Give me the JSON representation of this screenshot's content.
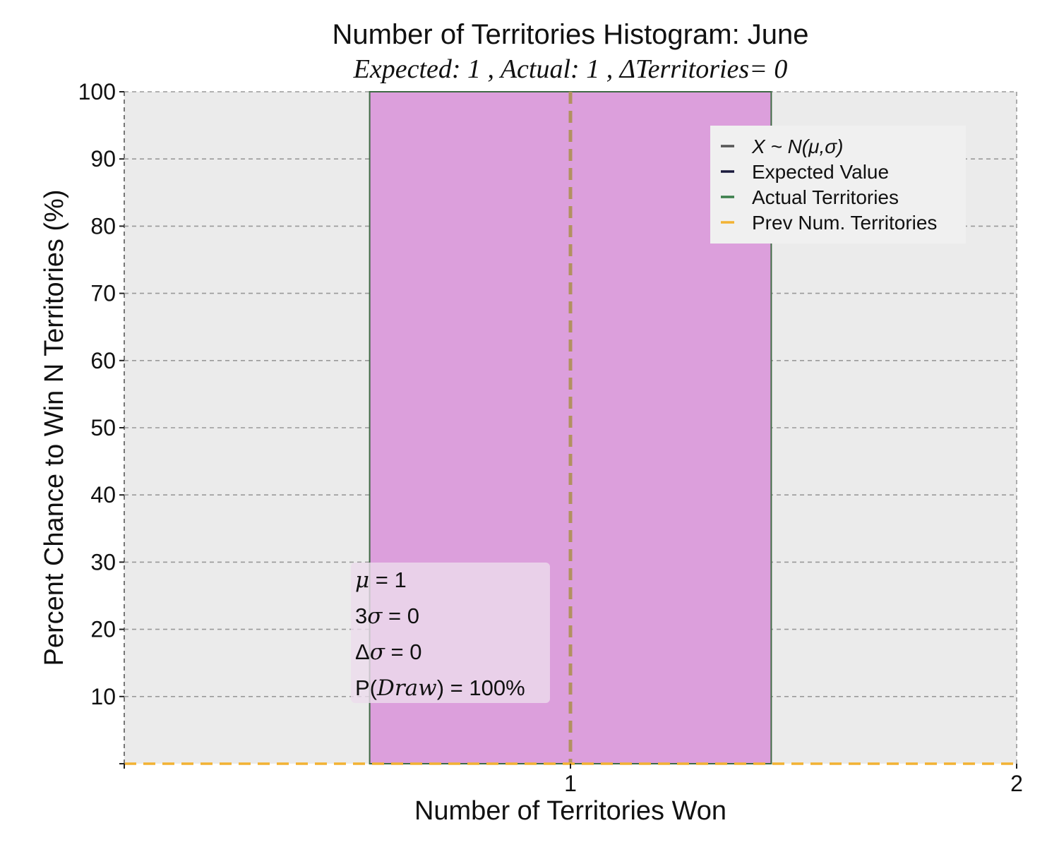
{
  "chart_data": {
    "type": "bar",
    "title": "Number of Territories Histogram: June",
    "subtitle": "Expected: 1 , Actual: 1 , ΔTerritories= 0",
    "xlabel": "Number of Territories Won",
    "ylabel": "Percent Chance to Win N Territories (%)",
    "xlim": [
      0,
      2
    ],
    "ylim": [
      0,
      100
    ],
    "xticks": [
      1,
      2
    ],
    "xtick_labels": [
      "1",
      "2"
    ],
    "yticks": [
      10,
      20,
      30,
      40,
      50,
      60,
      70,
      80,
      90,
      100
    ],
    "ytick_labels": [
      "10",
      "20",
      "30",
      "40",
      "50",
      "60",
      "70",
      "80",
      "90",
      "100"
    ],
    "grid": true,
    "bars": [
      {
        "x_start": 0.55,
        "x_end": 1.45,
        "value": 100
      }
    ],
    "reference_lines": [
      {
        "series": "Expected Value",
        "orientation": "vertical",
        "x": 1
      },
      {
        "series": "Actual Territories",
        "orientation": "vertical",
        "x": 1
      },
      {
        "series": "Prev Num. Territories",
        "orientation": "horizontal",
        "y": 0
      }
    ],
    "legend": {
      "placement": "top-right",
      "entries": [
        {
          "label": "X ~ N(μ,σ)",
          "color": "#555555",
          "italic": true
        },
        {
          "label": "Expected Value",
          "color": "#1a1a3d",
          "italic": false
        },
        {
          "label": "Actual Territories",
          "color": "#3a7f4a",
          "italic": false
        },
        {
          "label": "Prev Num. Territories",
          "color": "#f2b233",
          "italic": false
        }
      ]
    },
    "stats_box": {
      "lines": [
        {
          "symbol": "μ",
          "prefix": "",
          "suffix": " = 1"
        },
        {
          "symbol": "σ",
          "prefix": "3",
          "suffix": " = 0"
        },
        {
          "symbol": "σ",
          "prefix": "Δ",
          "suffix": " = 0"
        },
        {
          "symbol": "Draw",
          "prefix": "P(",
          "suffix": ") = 100%"
        }
      ]
    },
    "colors": {
      "plot_background": "#ebebeb",
      "bar_fill": "#dc9fdc",
      "bar_edge": "#3f6a45",
      "expected_line": "#b29160",
      "prev_line": "#f2b233",
      "grid": "#9a9a9a"
    }
  }
}
